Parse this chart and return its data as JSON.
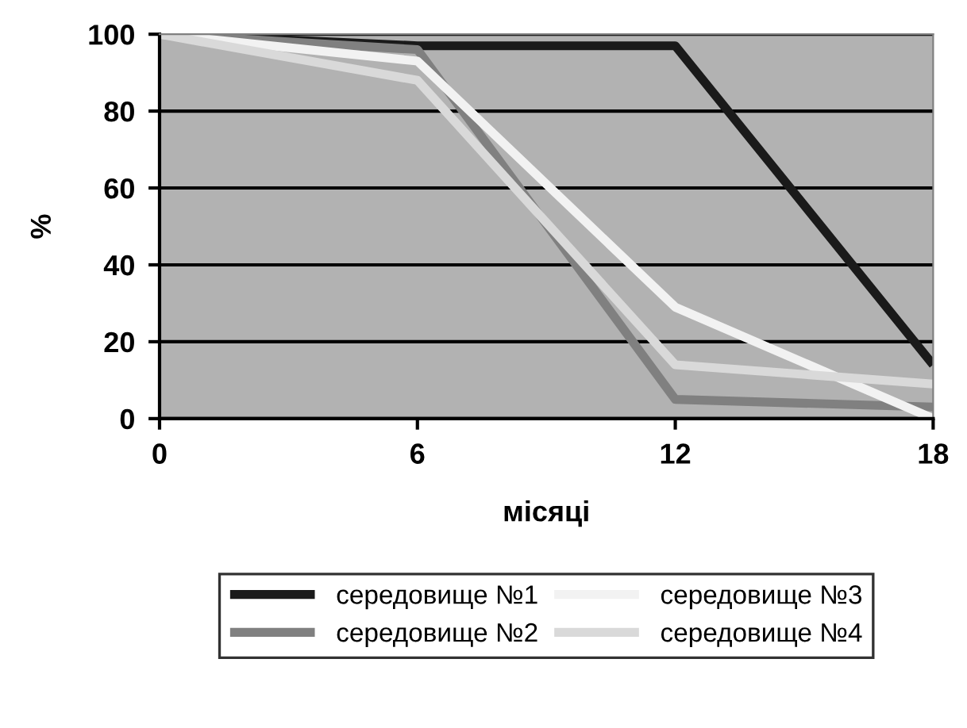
{
  "chart_data": {
    "type": "line",
    "xlabel": "місяці",
    "ylabel": "%",
    "x": [
      0,
      6,
      12,
      18
    ],
    "series": [
      {
        "name": "середовище №1",
        "color": "#1a1a1a",
        "values": [
          100,
          97,
          97,
          14
        ]
      },
      {
        "name": "середовище №2",
        "color": "#808080",
        "values": [
          100,
          96,
          5,
          3
        ]
      },
      {
        "name": "середовище №3",
        "color": "#f2f2f2",
        "values": [
          100,
          93,
          29,
          0
        ]
      },
      {
        "name": "середовище №4",
        "color": "#d9d9d9",
        "values": [
          100,
          88,
          14,
          9
        ]
      }
    ],
    "xlim": [
      0,
      18
    ],
    "xticks": [
      0,
      6,
      12,
      18
    ],
    "ylim": [
      0,
      100
    ],
    "yticks": [
      0,
      20,
      40,
      60,
      80,
      100
    ],
    "grid": "y",
    "legend": "bottom",
    "marker": "none",
    "line_style": "solid"
  }
}
